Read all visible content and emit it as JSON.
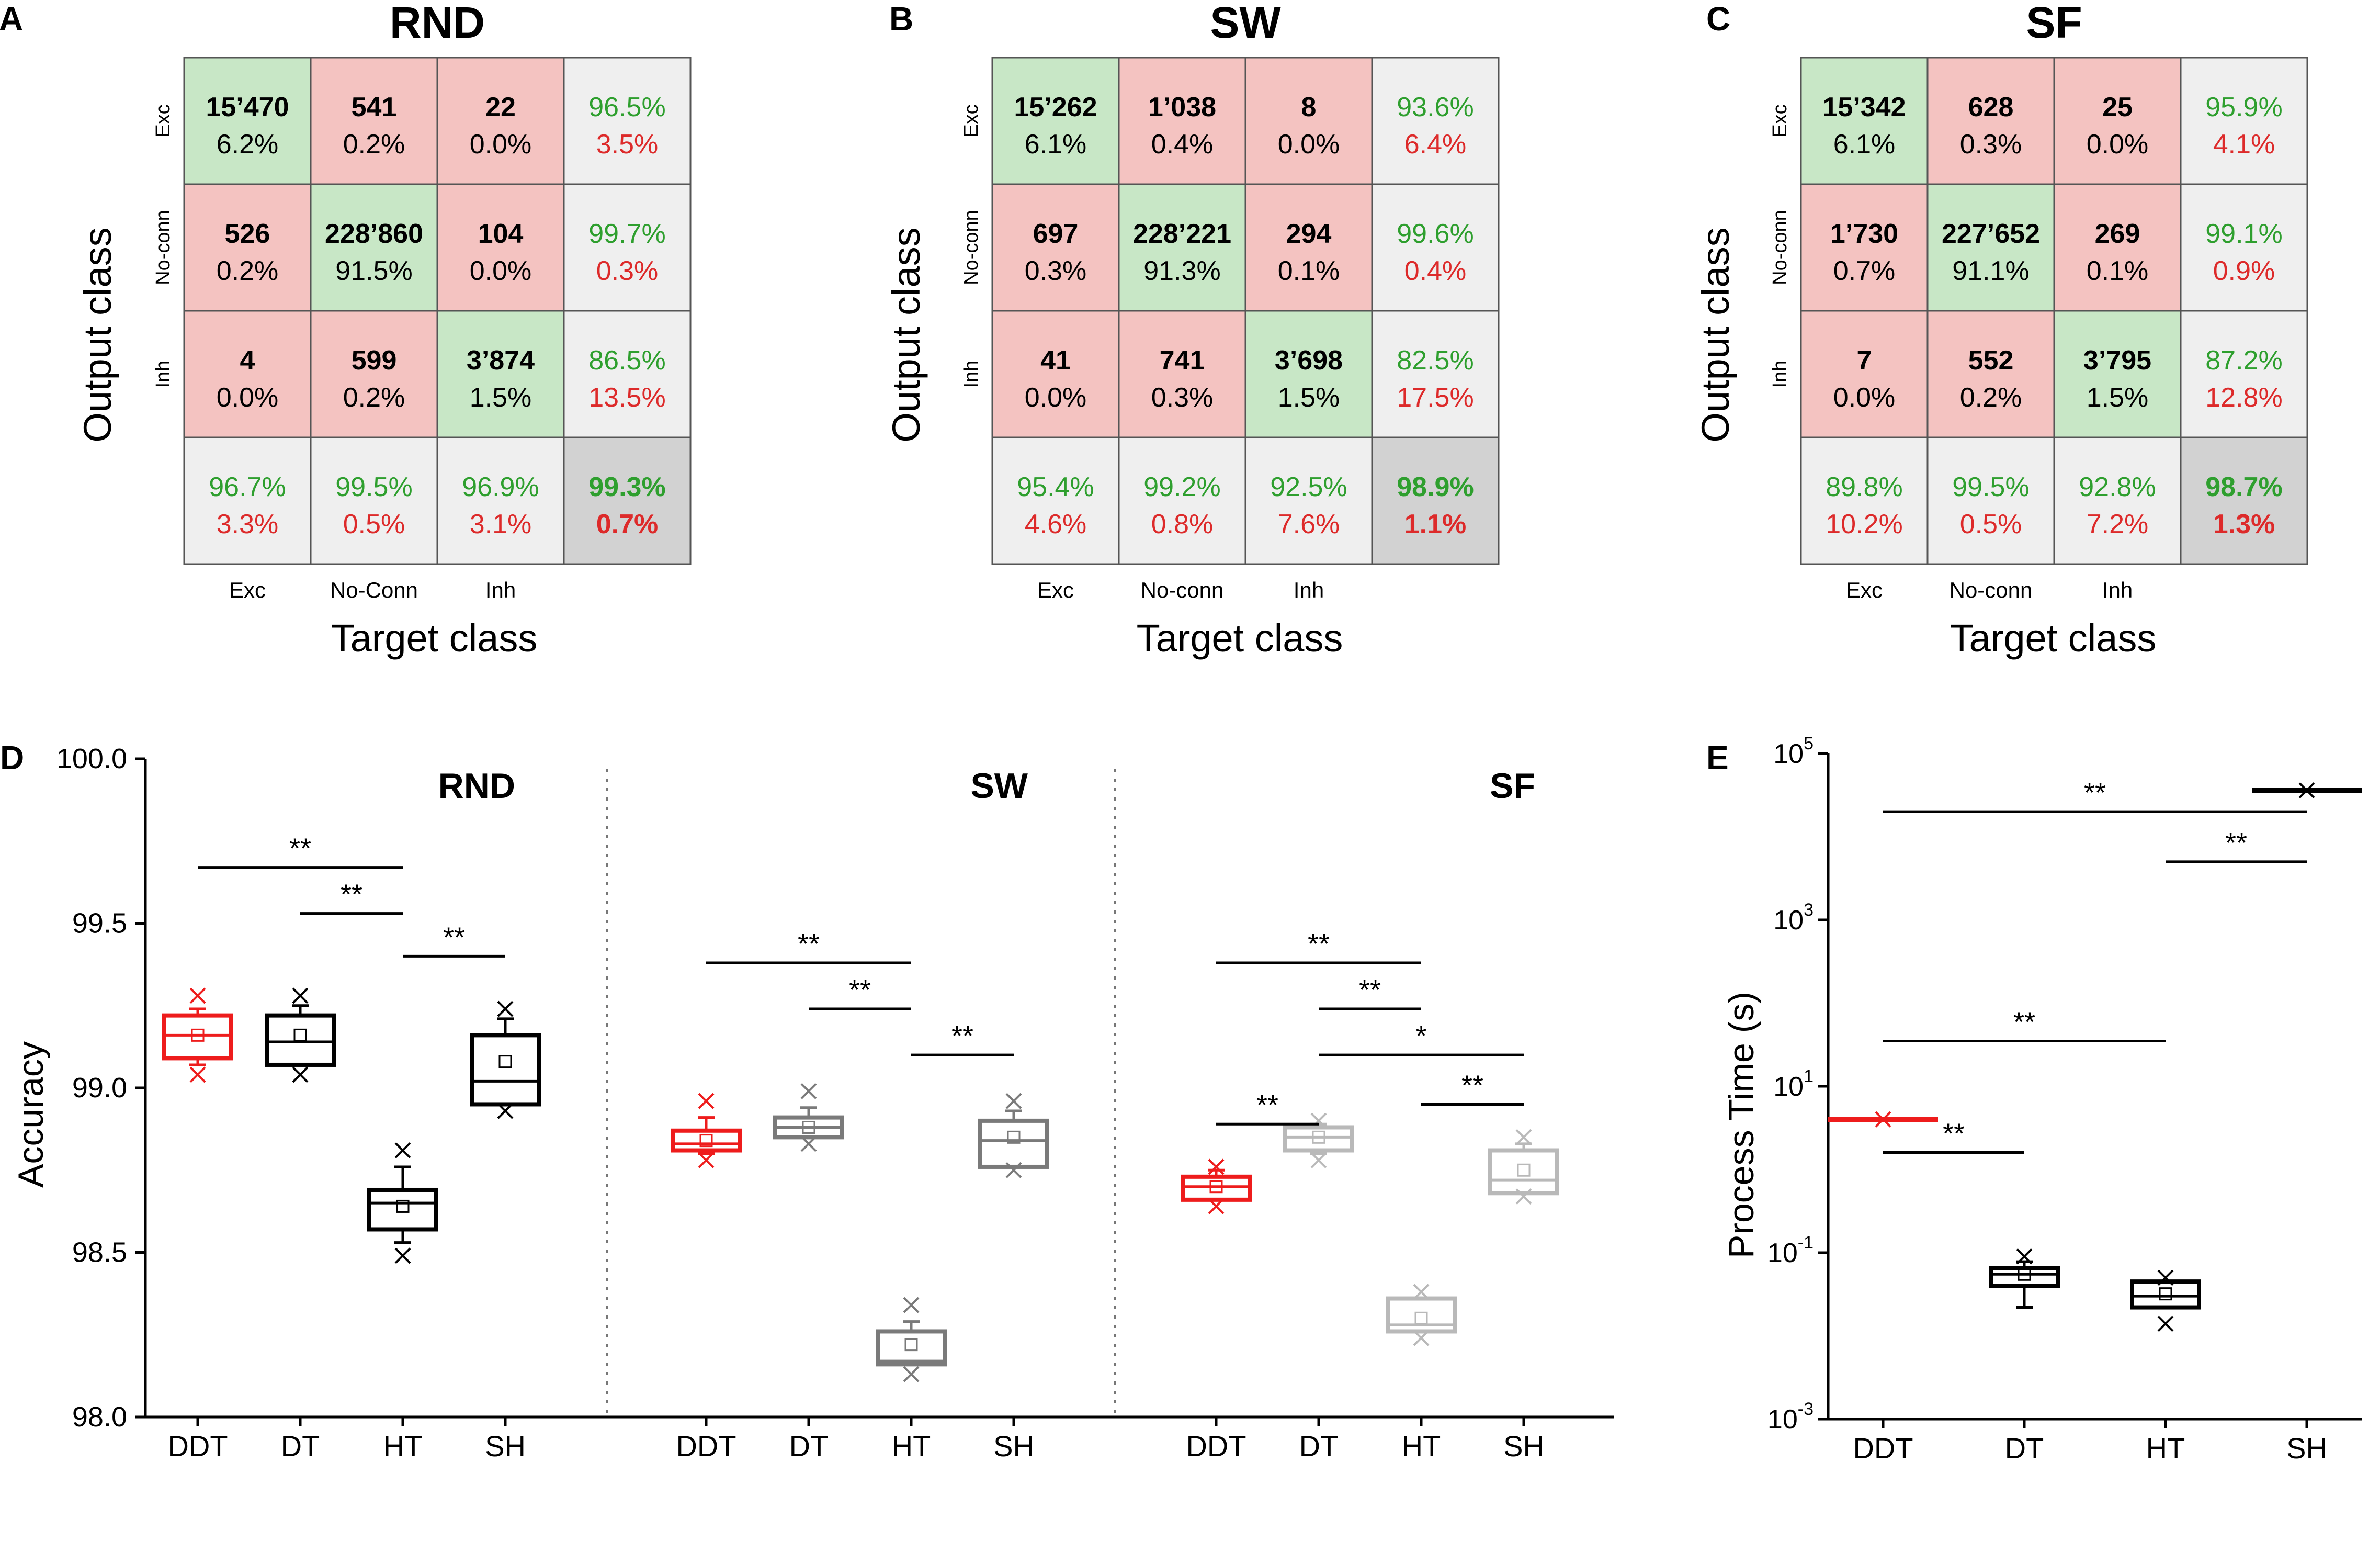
{
  "figure": {
    "conf_output_label": "Output class",
    "conf_target_label": "Target class",
    "accuracy_ylabel": "Accuracy",
    "time_ylabel": "Process Time (s)"
  },
  "colors": {
    "correct": "#c8e7c6",
    "wrong": "#f4c3c1",
    "summary": "#efefef",
    "total": "#d2d2d2",
    "green_text": "#2e9f2e",
    "red_text": "#dd2a2a",
    "red_box": "#ee1c1c",
    "black_box": "#000000",
    "gray_box": "#7a7a7a",
    "lightgray_box": "#b9b9b9",
    "sig_line": "#000000"
  },
  "chart_data": [
    {
      "panel": "A",
      "type": "table",
      "title": "RND",
      "row_labels": [
        "Exc",
        "No-conn",
        "Inh"
      ],
      "col_labels": [
        "Exc",
        "No-Conn",
        "Inh"
      ],
      "counts": [
        [
          "15’470",
          "541",
          "22"
        ],
        [
          "526",
          "228’860",
          "104"
        ],
        [
          "4",
          "599",
          "3’874"
        ]
      ],
      "percents": [
        [
          "6.2%",
          "0.2%",
          "0.0%"
        ],
        [
          "0.2%",
          "91.5%",
          "0.0%"
        ],
        [
          "0.0%",
          "0.2%",
          "1.5%"
        ]
      ],
      "row_summary": [
        [
          "96.5%",
          "3.5%"
        ],
        [
          "99.7%",
          "0.3%"
        ],
        [
          "86.5%",
          "13.5%"
        ]
      ],
      "col_summary": [
        [
          "96.7%",
          "3.3%"
        ],
        [
          "99.5%",
          "0.5%"
        ],
        [
          "96.9%",
          "3.1%"
        ]
      ],
      "total": [
        "99.3%",
        "0.7%"
      ]
    },
    {
      "panel": "B",
      "type": "table",
      "title": "SW",
      "row_labels": [
        "Exc",
        "No-conn",
        "Inh"
      ],
      "col_labels": [
        "Exc",
        "No-conn",
        "Inh"
      ],
      "counts": [
        [
          "15’262",
          "1’038",
          "8"
        ],
        [
          "697",
          "228’221",
          "294"
        ],
        [
          "41",
          "741",
          "3’698"
        ]
      ],
      "percents": [
        [
          "6.1%",
          "0.4%",
          "0.0%"
        ],
        [
          "0.3%",
          "91.3%",
          "0.1%"
        ],
        [
          "0.0%",
          "0.3%",
          "1.5%"
        ]
      ],
      "row_summary": [
        [
          "93.6%",
          "6.4%"
        ],
        [
          "99.6%",
          "0.4%"
        ],
        [
          "82.5%",
          "17.5%"
        ]
      ],
      "col_summary": [
        [
          "95.4%",
          "4.6%"
        ],
        [
          "99.2%",
          "0.8%"
        ],
        [
          "92.5%",
          "7.6%"
        ]
      ],
      "total": [
        "98.9%",
        "1.1%"
      ]
    },
    {
      "panel": "C",
      "type": "table",
      "title": "SF",
      "row_labels": [
        "Exc",
        "No-conn",
        "Inh"
      ],
      "col_labels": [
        "Exc",
        "No-conn",
        "Inh"
      ],
      "counts": [
        [
          "15’342",
          "628",
          "25"
        ],
        [
          "1’730",
          "227’652",
          "269"
        ],
        [
          "7",
          "552",
          "3’795"
        ]
      ],
      "percents": [
        [
          "6.1%",
          "0.3%",
          "0.0%"
        ],
        [
          "0.7%",
          "91.1%",
          "0.1%"
        ],
        [
          "0.0%",
          "0.2%",
          "1.5%"
        ]
      ],
      "row_summary": [
        [
          "95.9%",
          "4.1%"
        ],
        [
          "99.1%",
          "0.9%"
        ],
        [
          "87.2%",
          "12.8%"
        ]
      ],
      "col_summary": [
        [
          "89.8%",
          "10.2%"
        ],
        [
          "99.5%",
          "0.5%"
        ],
        [
          "92.8%",
          "7.2%"
        ]
      ],
      "total": [
        "98.7%",
        "1.3%"
      ]
    },
    {
      "panel": "D",
      "type": "box",
      "ylabel": "Accuracy",
      "ylim": [
        98.0,
        100.0
      ],
      "yticks": [
        "98.0",
        "98.5",
        "99.0",
        "99.5",
        "100.0"
      ],
      "groups": [
        {
          "title": "RND",
          "boxes": [
            {
              "label": "DDT",
              "color": "red",
              "q1": 99.09,
              "median": 99.16,
              "q3": 99.22,
              "whisker_low": 99.07,
              "whisker_high": 99.24,
              "mean": 99.16,
              "outliers": [
                99.04,
                99.28
              ]
            },
            {
              "label": "DT",
              "color": "black",
              "q1": 99.07,
              "median": 99.14,
              "q3": 99.22,
              "whisker_low": 99.07,
              "whisker_high": 99.25,
              "mean": 99.16,
              "outliers": [
                99.04,
                99.28
              ]
            },
            {
              "label": "HT",
              "color": "black",
              "q1": 98.57,
              "median": 98.65,
              "q3": 98.69,
              "whisker_low": 98.53,
              "whisker_high": 98.76,
              "mean": 98.64,
              "outliers": [
                98.49,
                98.81
              ]
            },
            {
              "label": "SH",
              "color": "black",
              "q1": 98.95,
              "median": 99.02,
              "q3": 99.16,
              "whisker_low": 98.95,
              "whisker_high": 99.21,
              "mean": 99.08,
              "outliers": [
                98.93,
                99.24
              ]
            }
          ],
          "sig": [
            {
              "from": "DDT",
              "to": "HT",
              "value": 99.67,
              "label": "**"
            },
            {
              "from": "DT",
              "to": "HT",
              "value": 99.53,
              "label": "**"
            },
            {
              "from": "HT",
              "to": "SH",
              "value": 99.4,
              "label": "**"
            }
          ]
        },
        {
          "title": "SW",
          "boxes": [
            {
              "label": "DDT",
              "color": "red",
              "q1": 98.81,
              "median": 98.83,
              "q3": 98.87,
              "whisker_low": 98.8,
              "whisker_high": 98.91,
              "mean": 98.84,
              "outliers": [
                98.78,
                98.96
              ]
            },
            {
              "label": "DT",
              "color": "gray",
              "q1": 98.85,
              "median": 98.88,
              "q3": 98.91,
              "whisker_low": 98.85,
              "whisker_high": 98.94,
              "mean": 98.88,
              "outliers": [
                98.83,
                98.99
              ]
            },
            {
              "label": "HT",
              "color": "gray",
              "q1": 98.16,
              "median": 98.17,
              "q3": 98.26,
              "whisker_low": 98.16,
              "whisker_high": 98.29,
              "mean": 98.22,
              "outliers": [
                98.13,
                98.34
              ]
            },
            {
              "label": "SH",
              "color": "gray",
              "q1": 98.76,
              "median": 98.84,
              "q3": 98.9,
              "whisker_low": 98.76,
              "whisker_high": 98.93,
              "mean": 98.85,
              "outliers": [
                98.75,
                98.96
              ]
            }
          ],
          "sig": [
            {
              "from": "DDT",
              "to": "HT",
              "value": 99.38,
              "label": "**"
            },
            {
              "from": "DT",
              "to": "HT",
              "value": 99.24,
              "label": "**"
            },
            {
              "from": "HT",
              "to": "SH",
              "value": 99.1,
              "label": "**"
            }
          ]
        },
        {
          "title": "SF",
          "boxes": [
            {
              "label": "DDT",
              "color": "red",
              "q1": 98.66,
              "median": 98.7,
              "q3": 98.73,
              "whisker_low": 98.66,
              "whisker_high": 98.75,
              "mean": 98.7,
              "outliers": [
                98.64,
                98.76
              ]
            },
            {
              "label": "DT",
              "color": "lightgray",
              "q1": 98.81,
              "median": 98.85,
              "q3": 98.88,
              "whisker_low": 98.8,
              "whisker_high": 98.89,
              "mean": 98.85,
              "outliers": [
                98.78,
                98.9
              ]
            },
            {
              "label": "HT",
              "color": "lightgray",
              "q1": 98.26,
              "median": 98.28,
              "q3": 98.36,
              "whisker_low": 98.26,
              "whisker_high": 98.36,
              "mean": 98.3,
              "outliers": [
                98.24,
                98.38
              ]
            },
            {
              "label": "SH",
              "color": "lightgray",
              "q1": 98.68,
              "median": 98.72,
              "q3": 98.81,
              "whisker_low": 98.68,
              "whisker_high": 98.83,
              "mean": 98.75,
              "outliers": [
                98.67,
                98.85
              ]
            }
          ],
          "sig": [
            {
              "from": "DDT",
              "to": "HT",
              "value": 99.38,
              "label": "**"
            },
            {
              "from": "DT",
              "to": "HT",
              "value": 99.24,
              "label": "**"
            },
            {
              "from": "DT",
              "to": "SH",
              "value": 99.1,
              "label": "*"
            },
            {
              "from": "HT",
              "to": "SH",
              "value": 98.95,
              "label": "**"
            },
            {
              "from": "DDT",
              "to": "DT",
              "value": 98.89,
              "label": "**"
            }
          ]
        }
      ]
    },
    {
      "panel": "E",
      "type": "box",
      "yscale": "log",
      "ylabel": "Process Time (s)",
      "ylim_exp": [
        -3,
        5
      ],
      "yticks_exp": [
        "-3",
        "-1",
        "1",
        "3",
        "5"
      ],
      "boxes": [
        {
          "label": "DDT",
          "color": "red",
          "q1": 4.0,
          "median": 4.0,
          "q3": 4.0,
          "whisker_low": 4.0,
          "whisker_high": 4.0,
          "mean": 4.0,
          "outliers": [
            4.0
          ]
        },
        {
          "label": "DT",
          "color": "black",
          "q1": 0.04,
          "median": 0.055,
          "q3": 0.065,
          "whisker_low": 0.022,
          "whisker_high": 0.078,
          "mean": 0.055,
          "outliers": [
            0.09
          ]
        },
        {
          "label": "HT",
          "color": "black",
          "q1": 0.022,
          "median": 0.03,
          "q3": 0.045,
          "whisker_low": 0.022,
          "whisker_high": 0.045,
          "mean": 0.032,
          "outliers": [
            0.014,
            0.05
          ]
        },
        {
          "label": "SH",
          "color": "black",
          "q1": 36000,
          "median": 36000,
          "q3": 36000,
          "whisker_low": 36000,
          "whisker_high": 36000,
          "mean": 36000,
          "outliers": [
            36000
          ]
        }
      ],
      "sig": [
        {
          "from": "DDT",
          "to": "SH",
          "value": 20000,
          "label": "**"
        },
        {
          "from": "HT",
          "to": "SH",
          "value": 5000,
          "label": "**"
        },
        {
          "from": "DDT",
          "to": "HT",
          "value": 35,
          "label": "**"
        },
        {
          "from": "DDT",
          "to": "DT",
          "value": 1.6,
          "label": "**"
        }
      ]
    }
  ]
}
